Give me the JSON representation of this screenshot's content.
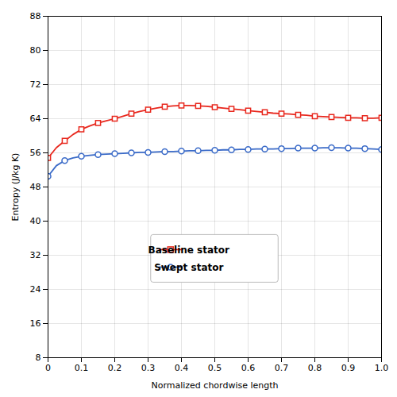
{
  "chart_data": {
    "type": "line",
    "x": [
      0.0,
      0.025,
      0.05,
      0.075,
      0.1,
      0.125,
      0.15,
      0.175,
      0.2,
      0.225,
      0.25,
      0.275,
      0.3,
      0.325,
      0.35,
      0.375,
      0.4,
      0.425,
      0.45,
      0.475,
      0.5,
      0.525,
      0.55,
      0.575,
      0.6,
      0.625,
      0.65,
      0.675,
      0.7,
      0.725,
      0.75,
      0.775,
      0.8,
      0.825,
      0.85,
      0.875,
      0.9,
      0.925,
      0.95,
      0.975,
      1.0
    ],
    "series": [
      {
        "name": "Baseline stator",
        "color": "#e8281e",
        "marker": "square",
        "values": [
          54.8,
          57.2,
          58.8,
          60.3,
          61.5,
          62.3,
          63.0,
          63.5,
          64.0,
          64.6,
          65.2,
          65.7,
          66.1,
          66.5,
          66.8,
          67.0,
          67.1,
          67.1,
          67.0,
          66.9,
          66.7,
          66.5,
          66.3,
          66.1,
          65.9,
          65.7,
          65.5,
          65.3,
          65.2,
          65.1,
          64.9,
          64.8,
          64.6,
          64.5,
          64.4,
          64.3,
          64.2,
          64.2,
          64.1,
          64.1,
          64.2
        ]
      },
      {
        "name": "Swept stator",
        "color": "#3b6bc8",
        "marker": "circle",
        "values": [
          50.5,
          53.0,
          54.2,
          54.8,
          55.2,
          55.4,
          55.6,
          55.7,
          55.8,
          55.9,
          56.0,
          56.1,
          56.1,
          56.2,
          56.3,
          56.3,
          56.4,
          56.5,
          56.5,
          56.6,
          56.6,
          56.7,
          56.7,
          56.8,
          56.8,
          56.9,
          56.9,
          56.9,
          57.0,
          57.0,
          57.1,
          57.1,
          57.1,
          57.2,
          57.2,
          57.2,
          57.1,
          57.1,
          57.0,
          56.9,
          56.8
        ]
      }
    ],
    "xlabel": "Normalized chordwise length",
    "ylabel": "Entropy (J/kg K)",
    "xlim": [
      0,
      1
    ],
    "ylim": [
      8,
      88
    ],
    "xticks": [
      0,
      0.1,
      0.2,
      0.3,
      0.4,
      0.5,
      0.6,
      0.7,
      0.8,
      0.9,
      {
        "value": 1,
        "label": "1.0"
      }
    ],
    "yticks": [
      8,
      16,
      24,
      32,
      40,
      48,
      56,
      64,
      72,
      80,
      88
    ],
    "grid": true,
    "legend": "lower center"
  }
}
